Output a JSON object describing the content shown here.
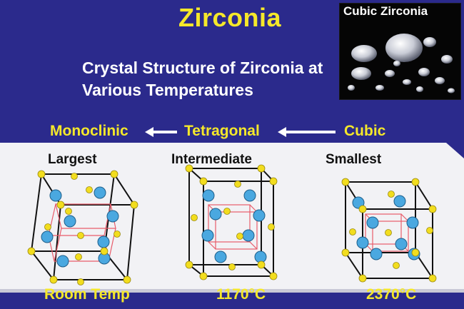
{
  "title": "Zirconia",
  "subtitle": "Crystal Structure of Zirconia at Various Temperatures",
  "photo": {
    "label": "Cubic Zirconia"
  },
  "phases": [
    {
      "name": "Monoclinic",
      "size": "Largest",
      "temperature": "Room Temp"
    },
    {
      "name": "Tetragonal",
      "size": "Intermediate",
      "temperature": "1170°C"
    },
    {
      "name": "Cubic",
      "size": "Smallest",
      "temperature": "2370°C"
    }
  ],
  "colors": {
    "background": "#2b2a8c",
    "accent_text": "#f5e82a",
    "oxygen_atom": "#4aa8e0",
    "zirconium_atom": "#f2dd1e",
    "inner_cell": "#e85c6a",
    "floor": "#f2f2f5"
  }
}
